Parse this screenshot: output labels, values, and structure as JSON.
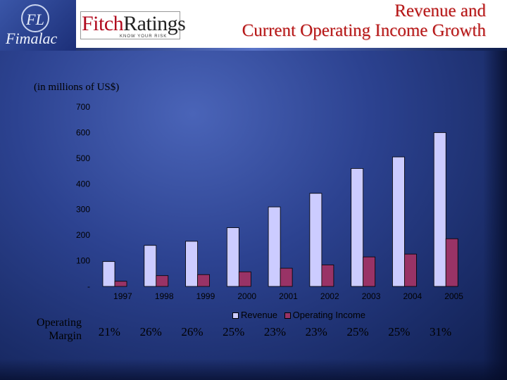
{
  "header": {
    "company_logo": "Fimalac",
    "company_mark": "FL",
    "partner_logo": {
      "fitch": "Fitch",
      "ratings": "Ratings",
      "tagline": "KNOW YOUR RISK"
    },
    "title_line1": "Revenue and",
    "title_line2": "Current Operating Income Growth"
  },
  "units_label": "(in millions of US$)",
  "margin": {
    "label_line1": "Operating",
    "label_line2": "Margin",
    "values": [
      "21%",
      "26%",
      "26%",
      "25%",
      "23%",
      "23%",
      "25%",
      "25%",
      "31%"
    ]
  },
  "colors": {
    "title": "#b51616",
    "revenue": "#ccccff",
    "operating_income": "#993366",
    "text": "#000000"
  },
  "chart_data": {
    "type": "bar",
    "categories": [
      "1997",
      "1998",
      "1999",
      "2000",
      "2001",
      "2002",
      "2003",
      "2004",
      "2005"
    ],
    "series": [
      {
        "name": "Revenue",
        "values": [
          97,
          160,
          176,
          229,
          310,
          363,
          460,
          505,
          600
        ]
      },
      {
        "name": "Operating Income",
        "values": [
          20,
          42,
          46,
          57,
          71,
          84,
          115,
          126,
          186
        ]
      }
    ],
    "y_ticks": [
      "-",
      "100",
      "200",
      "300",
      "400",
      "500",
      "600",
      "700"
    ],
    "ylim": [
      0,
      700
    ],
    "xlabel": "",
    "ylabel": "",
    "legend_position": "bottom",
    "grid": false
  }
}
